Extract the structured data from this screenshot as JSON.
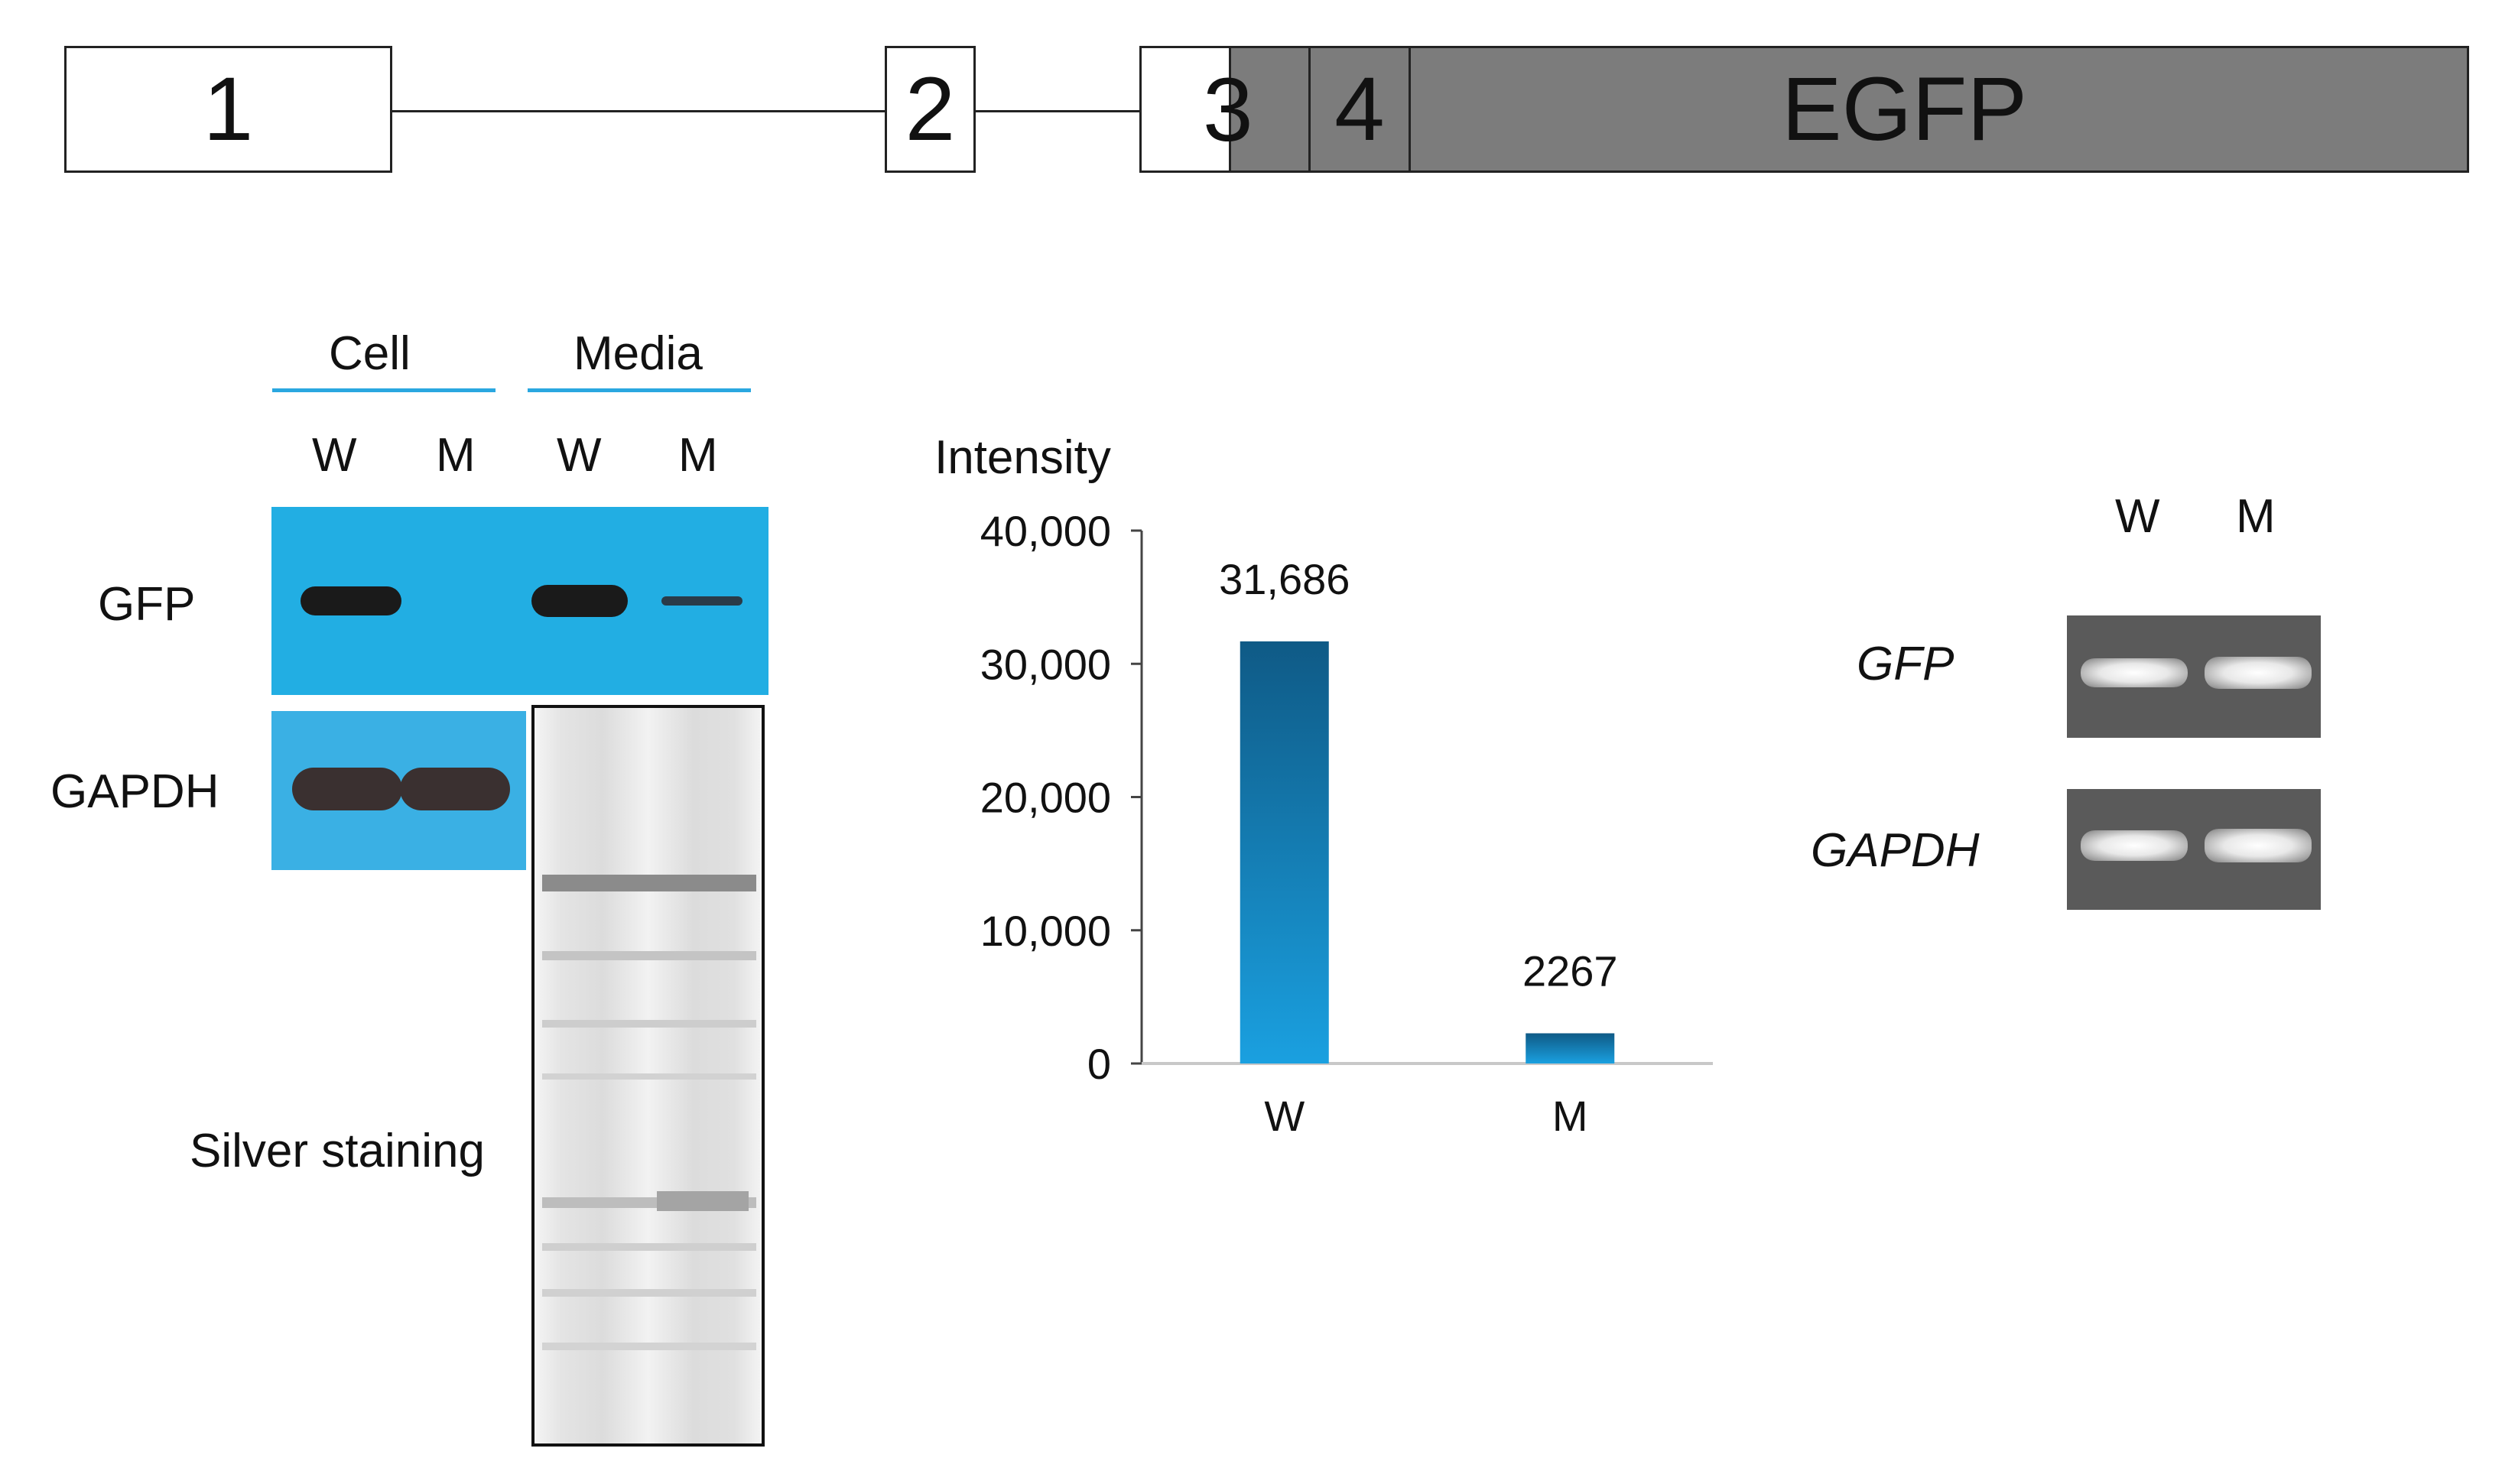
{
  "gene_construct": {
    "exons": [
      "1",
      "2",
      "3",
      "4"
    ],
    "reporter": "EGFP",
    "colors": {
      "untranslated": "#ffffff",
      "coding_fusion": "#7c7c7c"
    }
  },
  "western_blot": {
    "group_labels": {
      "cell": "Cell",
      "media": "Media"
    },
    "lane_labels": [
      "W",
      "M",
      "W",
      "M"
    ],
    "row_labels": {
      "gfp": "GFP",
      "gapdh": "GAPDH"
    },
    "silver_label": "Silver staining",
    "colors": {
      "membrane": "#22aee3",
      "group_underline": "#2aa7e0"
    }
  },
  "chart_data": {
    "type": "bar",
    "ylabel": "Intensity",
    "categories": [
      "W",
      "M"
    ],
    "values": [
      31686,
      2267
    ],
    "value_labels": [
      "31,686",
      "2267"
    ],
    "ylim": [
      0,
      40000
    ],
    "yticks": [
      "0",
      "10,000",
      "20,000",
      "30,000",
      "40,000"
    ],
    "bar_gradient": [
      "#0f5a86",
      "#1aa0e0"
    ]
  },
  "rt_pcr": {
    "lane_labels": [
      "W",
      "M"
    ],
    "row_labels": {
      "gfp": "GFP",
      "gapdh": "GAPDH"
    }
  }
}
